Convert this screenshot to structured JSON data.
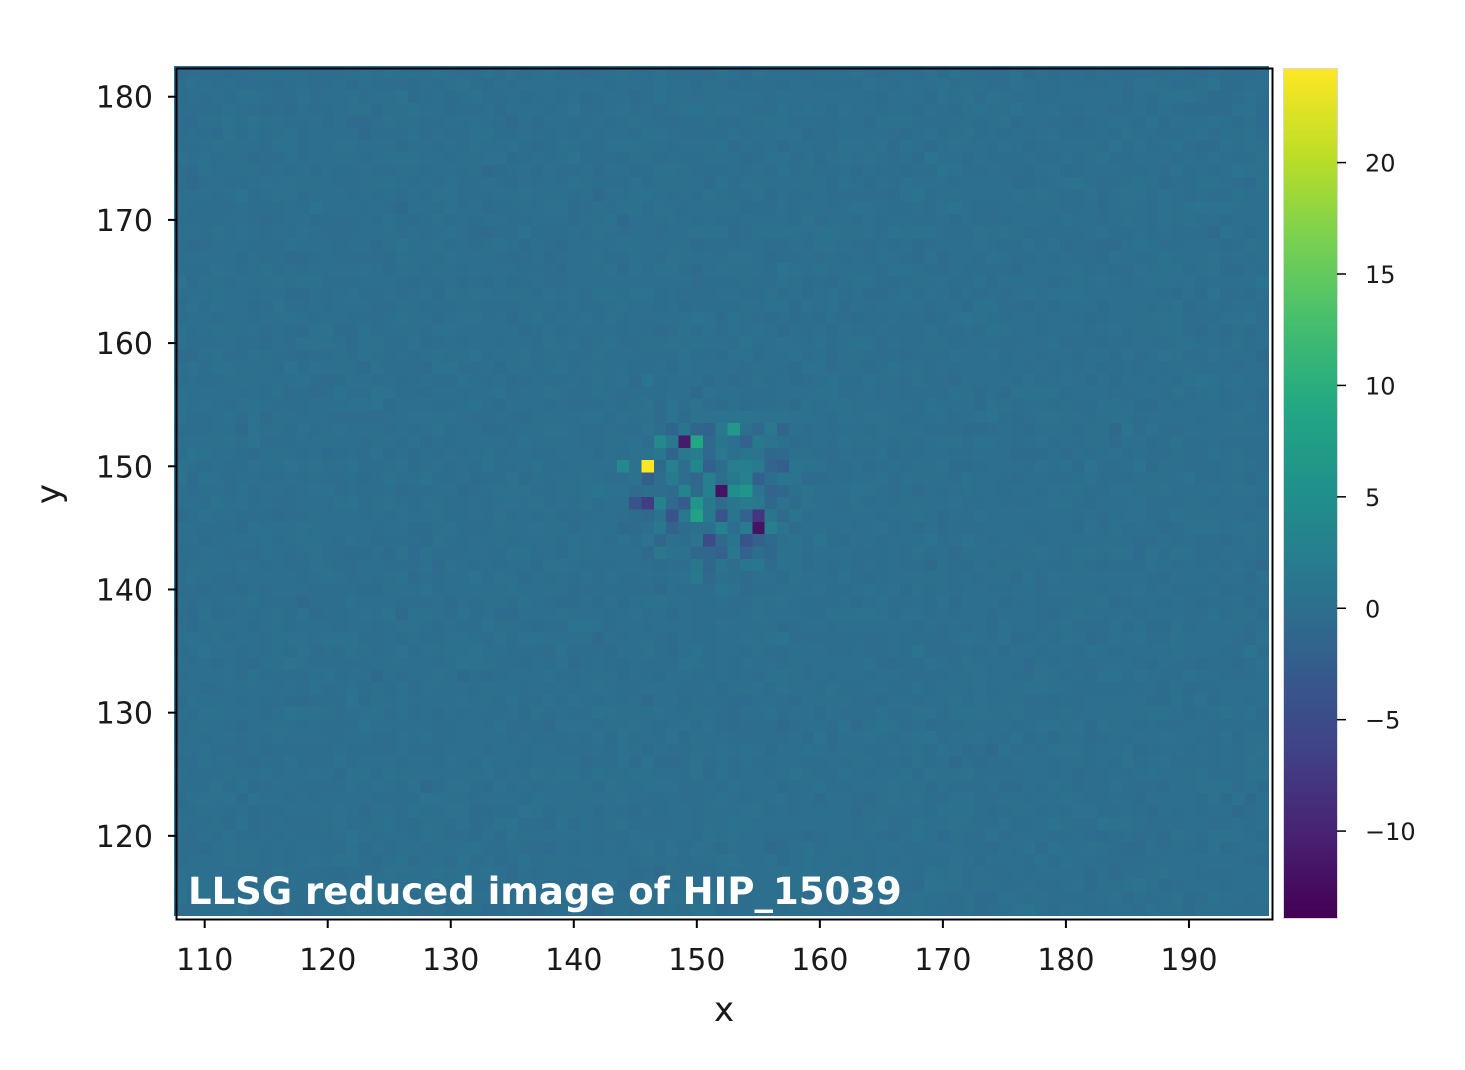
{
  "chart_data": {
    "type": "heatmap",
    "title": "LLSG reduced image of HIP_15039",
    "xlabel": "x",
    "ylabel": "y",
    "xlim": [
      107.75,
      196.75
    ],
    "ylim": [
      113.25,
      182.25
    ],
    "x_ticks": [
      "110",
      "120",
      "130",
      "140",
      "150",
      "160",
      "170",
      "180",
      "190"
    ],
    "y_ticks": [
      "120",
      "130",
      "140",
      "150",
      "160",
      "170",
      "180"
    ],
    "colormap": "viridis",
    "colorbar": {
      "vmin": -13.9,
      "vmax": 24.2,
      "ticks": [
        "20",
        "15",
        "10",
        "5",
        "0",
        "−5",
        "−10"
      ]
    },
    "background_value": 0,
    "noise_std": 0.25,
    "speckle_center": [
      151.5,
      148.0
    ],
    "speckle_radius": 8.5,
    "notable_pixels": [
      {
        "x": 146,
        "y": 150,
        "value": 24.2
      },
      {
        "x": 150,
        "y": 152,
        "value": 9.0
      },
      {
        "x": 153,
        "y": 153,
        "value": 6.5
      },
      {
        "x": 150,
        "y": 146,
        "value": 8.0
      },
      {
        "x": 150,
        "y": 147,
        "value": 6.0
      },
      {
        "x": 154,
        "y": 148,
        "value": 6.0
      },
      {
        "x": 153,
        "y": 148,
        "value": 5.0
      },
      {
        "x": 147,
        "y": 152,
        "value": 4.0
      },
      {
        "x": 144,
        "y": 150,
        "value": 4.0
      },
      {
        "x": 149,
        "y": 152,
        "value": -11.0
      },
      {
        "x": 152,
        "y": 148,
        "value": -12.0
      },
      {
        "x": 155,
        "y": 145,
        "value": -12.0
      },
      {
        "x": 155,
        "y": 146,
        "value": -8.0
      },
      {
        "x": 146,
        "y": 147,
        "value": -7.0
      },
      {
        "x": 145,
        "y": 147,
        "value": -4.0
      },
      {
        "x": 151,
        "y": 144,
        "value": -5.0
      },
      {
        "x": 154,
        "y": 144,
        "value": -4.0
      },
      {
        "x": 152,
        "y": 146,
        "value": -4.0
      },
      {
        "x": 148,
        "y": 146,
        "value": -4.0
      }
    ]
  }
}
